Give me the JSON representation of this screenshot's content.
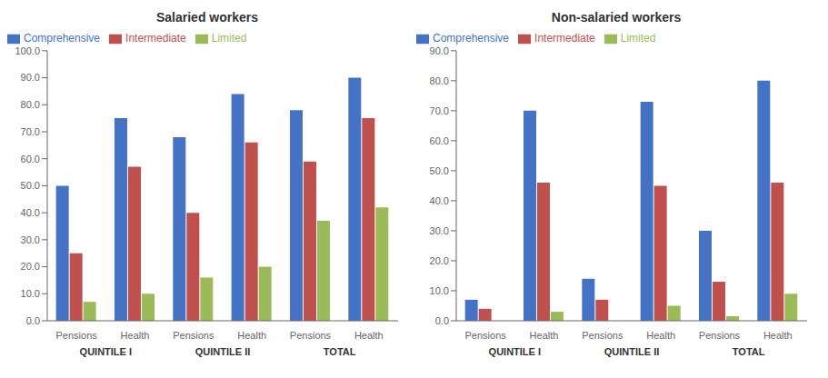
{
  "chart_data": [
    {
      "type": "bar",
      "title": "Salaried workers",
      "categories": [
        "Pensions",
        "Health",
        "Pensions",
        "Health",
        "Pensions",
        "Health"
      ],
      "groups": [
        "QUINTILE I",
        "QUINTILE II",
        "TOTAL"
      ],
      "series": [
        {
          "name": "Comprehensive",
          "color": "#4472C4",
          "values": [
            50.0,
            75.0,
            68.0,
            84.0,
            78.0,
            90.0
          ]
        },
        {
          "name": "Intermediate",
          "color": "#C0504D",
          "values": [
            25.0,
            57.0,
            40.0,
            66.0,
            59.0,
            75.0
          ]
        },
        {
          "name": "Limited",
          "color": "#9BBB59",
          "values": [
            7.0,
            10.0,
            16.0,
            20.0,
            37.0,
            42.0
          ]
        }
      ],
      "ylim": [
        0,
        100.0
      ],
      "yticks": [
        {
          "value": 0,
          "label": "0.0"
        },
        {
          "value": 10,
          "label": "10.0"
        },
        {
          "value": 20,
          "label": "20.0"
        },
        {
          "value": 30,
          "label": "30.0"
        },
        {
          "value": 40,
          "label": "40.0"
        },
        {
          "value": 50,
          "label": "50.0"
        },
        {
          "value": 60,
          "label": "60.0"
        },
        {
          "value": 70,
          "label": "70.0"
        },
        {
          "value": 80,
          "label": "80.0"
        },
        {
          "value": 90,
          "label": "90.0"
        },
        {
          "value": 100,
          "label": "100.0"
        }
      ],
      "grid": false,
      "legend": "upper left"
    },
    {
      "type": "bar",
      "title": "Non-salaried workers",
      "categories": [
        "Pensions",
        "Health",
        "Pensions",
        "Health",
        "Pensions",
        "Health"
      ],
      "groups": [
        "QUINTILE I",
        "QUINTILE II",
        "TOTAL"
      ],
      "series": [
        {
          "name": "Comprehensive",
          "color": "#4472C4",
          "values": [
            7.0,
            70.0,
            14.0,
            73.0,
            30.0,
            80.0
          ]
        },
        {
          "name": "Intermediate",
          "color": "#C0504D",
          "values": [
            4.0,
            46.0,
            7.0,
            45.0,
            13.0,
            46.0
          ]
        },
        {
          "name": "Limited",
          "color": "#9BBB59",
          "values": [
            0.0,
            3.0,
            0.0,
            5.0,
            1.5,
            9.0
          ]
        }
      ],
      "ylim": [
        0,
        90.0
      ],
      "yticks": [
        {
          "value": 0,
          "label": "0.0"
        },
        {
          "value": 10,
          "label": "10.0"
        },
        {
          "value": 20,
          "label": "20.0"
        },
        {
          "value": 30,
          "label": "30.0"
        },
        {
          "value": 40,
          "label": "40.0"
        },
        {
          "value": 50,
          "label": "50.0"
        },
        {
          "value": 60,
          "label": "60.0"
        },
        {
          "value": 70,
          "label": "70.0"
        },
        {
          "value": 80,
          "label": "80.0"
        },
        {
          "value": 90,
          "label": "90.0"
        }
      ],
      "grid": false,
      "legend": "upper left"
    }
  ]
}
